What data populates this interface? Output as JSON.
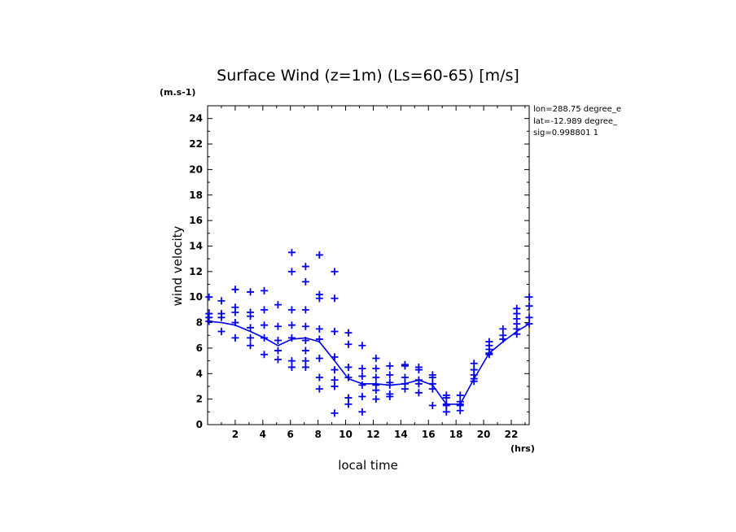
{
  "chart_data": {
    "type": "scatter",
    "title": "Surface Wind (z=1m) (Ls=60-65) [m/s]",
    "xlabel": "local time",
    "ylabel": "wind velocity",
    "x_unit": "(hrs)",
    "y_unit": "(m.s-1)",
    "xlim": [
      0,
      23.3
    ],
    "ylim": [
      0,
      25
    ],
    "x_ticks": [
      2,
      4,
      6,
      8,
      10,
      12,
      14,
      16,
      18,
      20,
      22
    ],
    "y_ticks": [
      0,
      2,
      4,
      6,
      8,
      10,
      12,
      14,
      16,
      18,
      20,
      22,
      24
    ],
    "color": "#0000ee",
    "grid": false,
    "annotations": [
      "lon=288.75 degree_e",
      "lat=-12.989 degree_",
      "sig=0.998801 1"
    ],
    "series": [
      {
        "style": "markers",
        "points": [
          [
            0.1,
            10.0
          ],
          [
            0.1,
            8.7
          ],
          [
            0.1,
            8.4
          ],
          [
            0.1,
            8.1
          ],
          [
            1.0,
            9.7
          ],
          [
            1.0,
            8.7
          ],
          [
            1.0,
            8.4
          ],
          [
            1.0,
            7.3
          ],
          [
            2.0,
            10.6
          ],
          [
            2.0,
            9.2
          ],
          [
            2.0,
            8.8
          ],
          [
            2.0,
            8.0
          ],
          [
            2.0,
            6.8
          ],
          [
            3.1,
            10.4
          ],
          [
            3.1,
            8.8
          ],
          [
            3.1,
            8.5
          ],
          [
            3.1,
            7.6
          ],
          [
            3.1,
            6.8
          ],
          [
            3.1,
            6.2
          ],
          [
            4.1,
            10.5
          ],
          [
            4.1,
            9.0
          ],
          [
            4.1,
            7.8
          ],
          [
            4.1,
            6.8
          ],
          [
            4.1,
            5.5
          ],
          [
            5.1,
            9.4
          ],
          [
            5.1,
            7.7
          ],
          [
            5.1,
            6.6
          ],
          [
            5.1,
            5.8
          ],
          [
            5.1,
            5.1
          ],
          [
            6.1,
            13.5
          ],
          [
            6.1,
            12.0
          ],
          [
            6.1,
            9.0
          ],
          [
            6.1,
            7.8
          ],
          [
            6.1,
            6.8
          ],
          [
            6.1,
            5.0
          ],
          [
            6.1,
            4.5
          ],
          [
            7.1,
            12.4
          ],
          [
            7.1,
            11.2
          ],
          [
            7.1,
            9.0
          ],
          [
            7.1,
            7.7
          ],
          [
            7.1,
            6.6
          ],
          [
            7.1,
            5.8
          ],
          [
            7.1,
            5.0
          ],
          [
            7.1,
            4.5
          ],
          [
            8.1,
            13.3
          ],
          [
            8.1,
            10.2
          ],
          [
            8.1,
            9.9
          ],
          [
            8.1,
            7.5
          ],
          [
            8.1,
            6.7
          ],
          [
            8.1,
            5.2
          ],
          [
            8.1,
            3.7
          ],
          [
            8.1,
            2.8
          ],
          [
            9.2,
            12.0
          ],
          [
            9.2,
            9.9
          ],
          [
            9.2,
            7.3
          ],
          [
            9.2,
            5.3
          ],
          [
            9.2,
            4.3
          ],
          [
            9.2,
            3.5
          ],
          [
            9.2,
            3.0
          ],
          [
            9.2,
            0.9
          ],
          [
            10.2,
            7.2
          ],
          [
            10.2,
            6.3
          ],
          [
            10.2,
            4.5
          ],
          [
            10.2,
            3.7
          ],
          [
            10.2,
            2.1
          ],
          [
            10.2,
            1.6
          ],
          [
            11.2,
            6.2
          ],
          [
            11.2,
            4.4
          ],
          [
            11.2,
            3.8
          ],
          [
            11.2,
            3.1
          ],
          [
            11.2,
            2.2
          ],
          [
            11.2,
            1.0
          ],
          [
            12.2,
            5.2
          ],
          [
            12.2,
            4.4
          ],
          [
            12.2,
            3.7
          ],
          [
            12.2,
            3.1
          ],
          [
            12.2,
            2.7
          ],
          [
            12.2,
            2.0
          ],
          [
            13.2,
            4.6
          ],
          [
            13.2,
            3.9
          ],
          [
            13.2,
            3.3
          ],
          [
            13.2,
            3.1
          ],
          [
            13.2,
            2.4
          ],
          [
            13.2,
            2.2
          ],
          [
            14.3,
            4.7
          ],
          [
            14.3,
            4.6
          ],
          [
            14.3,
            3.7
          ],
          [
            14.3,
            3.2
          ],
          [
            14.3,
            2.8
          ],
          [
            15.3,
            4.5
          ],
          [
            15.3,
            4.3
          ],
          [
            15.3,
            3.5
          ],
          [
            15.3,
            3.2
          ],
          [
            15.3,
            2.5
          ],
          [
            16.3,
            3.9
          ],
          [
            16.3,
            3.7
          ],
          [
            16.3,
            3.2
          ],
          [
            16.3,
            2.8
          ],
          [
            16.3,
            1.5
          ],
          [
            17.3,
            2.3
          ],
          [
            17.3,
            2.1
          ],
          [
            17.3,
            1.6
          ],
          [
            17.3,
            1.5
          ],
          [
            17.3,
            1.0
          ],
          [
            18.3,
            2.3
          ],
          [
            18.3,
            1.8
          ],
          [
            18.3,
            1.6
          ],
          [
            18.3,
            1.5
          ],
          [
            18.3,
            1.1
          ],
          [
            19.3,
            4.8
          ],
          [
            19.3,
            4.3
          ],
          [
            19.3,
            3.9
          ],
          [
            19.3,
            3.6
          ],
          [
            19.3,
            3.4
          ],
          [
            20.4,
            6.5
          ],
          [
            20.4,
            6.2
          ],
          [
            20.4,
            5.9
          ],
          [
            20.4,
            5.6
          ],
          [
            20.4,
            5.5
          ],
          [
            21.4,
            7.5
          ],
          [
            21.4,
            7.0
          ],
          [
            21.4,
            6.7
          ],
          [
            22.4,
            9.1
          ],
          [
            22.4,
            8.7
          ],
          [
            22.4,
            8.3
          ],
          [
            22.4,
            7.9
          ],
          [
            22.4,
            7.5
          ],
          [
            22.4,
            7.1
          ],
          [
            23.3,
            10.0
          ],
          [
            23.3,
            9.3
          ],
          [
            23.3,
            8.4
          ],
          [
            23.3,
            7.9
          ]
        ]
      },
      {
        "style": "line",
        "points": [
          [
            0.1,
            8.1
          ],
          [
            1.0,
            8.0
          ],
          [
            2.0,
            7.8
          ],
          [
            3.1,
            7.3
          ],
          [
            4.1,
            6.8
          ],
          [
            5.1,
            6.2
          ],
          [
            6.1,
            6.7
          ],
          [
            7.1,
            6.8
          ],
          [
            8.1,
            6.5
          ],
          [
            9.2,
            5.0
          ],
          [
            10.2,
            3.6
          ],
          [
            11.2,
            3.2
          ],
          [
            12.2,
            3.2
          ],
          [
            13.2,
            3.1
          ],
          [
            14.3,
            3.2
          ],
          [
            15.3,
            3.5
          ],
          [
            16.3,
            3.1
          ],
          [
            17.3,
            1.6
          ],
          [
            18.3,
            1.6
          ],
          [
            19.3,
            3.6
          ],
          [
            20.4,
            5.6
          ],
          [
            21.4,
            6.5
          ],
          [
            22.4,
            7.3
          ],
          [
            23.3,
            7.9
          ]
        ]
      }
    ]
  }
}
